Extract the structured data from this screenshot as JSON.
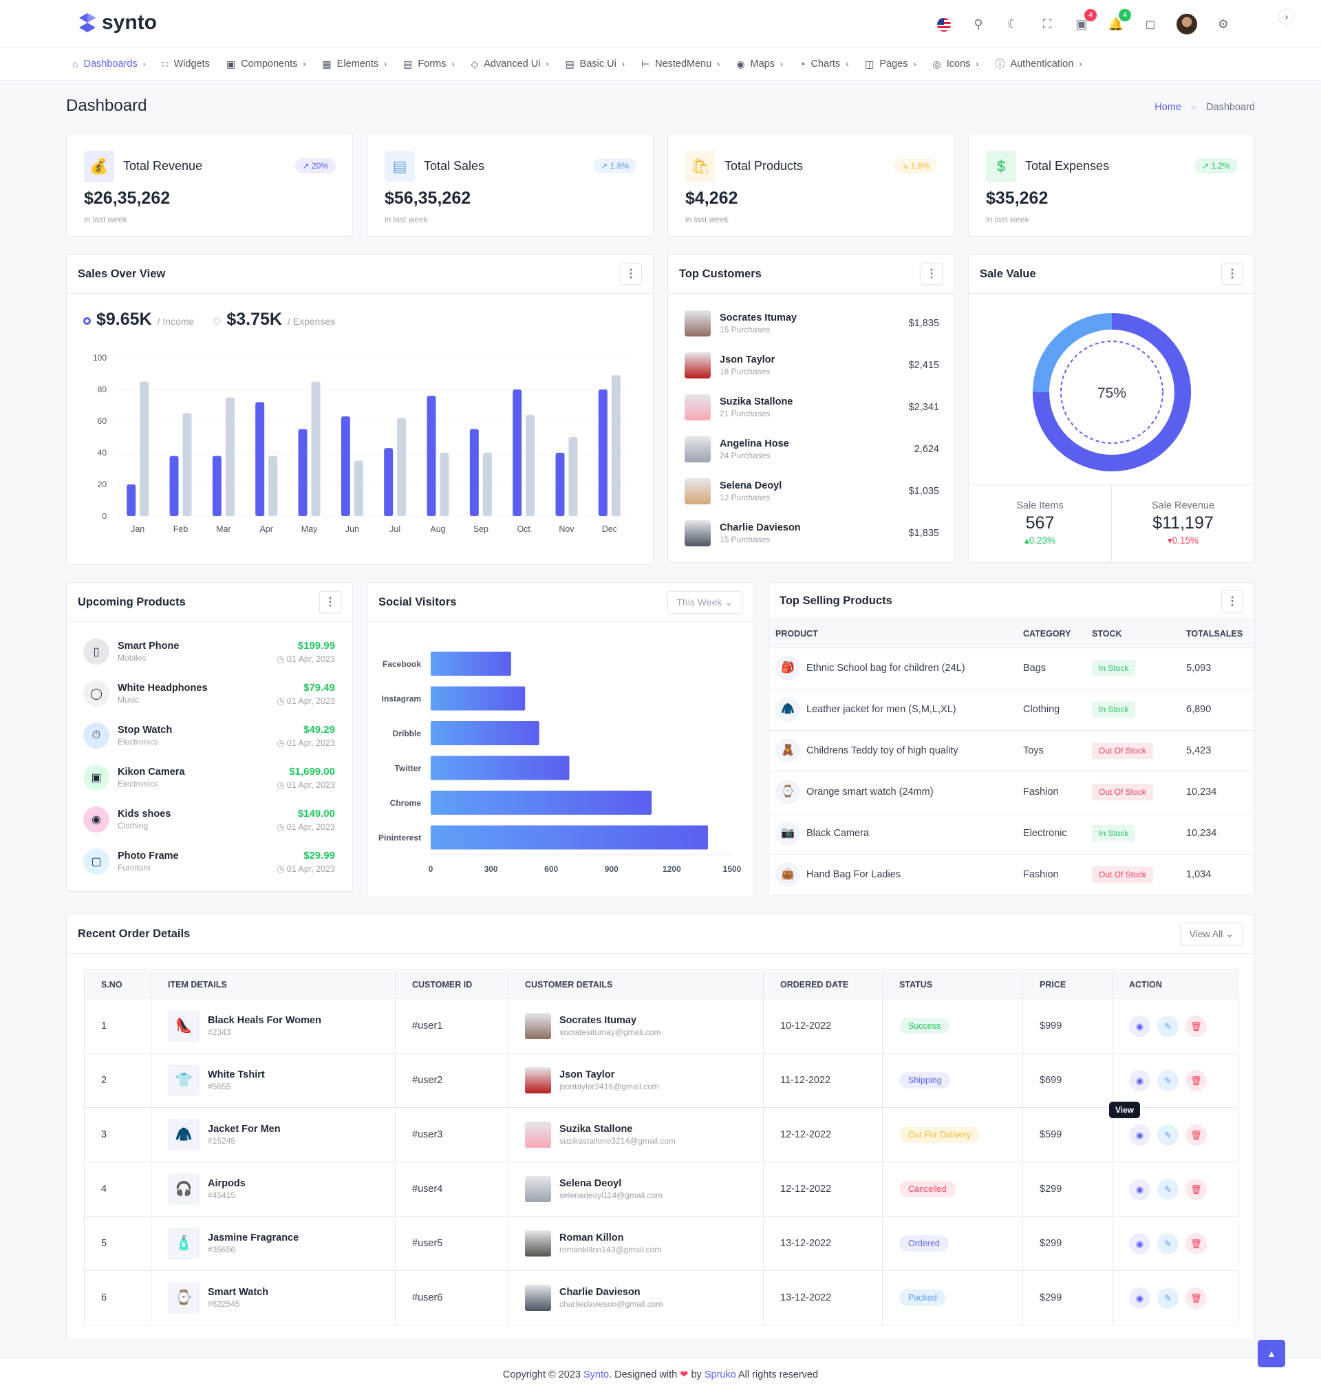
{
  "header": {
    "brand": "synto",
    "badges": {
      "cart": "4",
      "notifications": "4"
    }
  },
  "nav": [
    {
      "label": "Dashboards",
      "icon": "home-icon"
    },
    {
      "label": "Widgets",
      "icon": "grid-icon"
    },
    {
      "label": "Components",
      "icon": "box-icon"
    },
    {
      "label": "Elements",
      "icon": "cpu-icon"
    },
    {
      "label": "Forms",
      "icon": "file-icon"
    },
    {
      "label": "Advanced Ui",
      "icon": "layers-icon"
    },
    {
      "label": "Basic Ui",
      "icon": "doc-icon"
    },
    {
      "label": "NestedMenu",
      "icon": "tree-icon"
    },
    {
      "label": "Maps",
      "icon": "pin-icon"
    },
    {
      "label": "Charts",
      "icon": "pie-icon"
    },
    {
      "label": "Pages",
      "icon": "book-icon"
    },
    {
      "label": "Icons",
      "icon": "globe-icon"
    },
    {
      "label": "Authentication",
      "icon": "info-icon"
    }
  ],
  "page": {
    "title": "Dashboard",
    "breadcrumb": [
      "Home",
      "Dashboard"
    ]
  },
  "stats": [
    {
      "label": "Total Revenue",
      "value": "$26,35,262",
      "change": "20%",
      "sub": "in last week",
      "color": "#5b5ff0",
      "trend": "up"
    },
    {
      "label": "Total Sales",
      "value": "$56,35,262",
      "change": "1.8%",
      "sub": "in last week",
      "color": "#5fa0f7",
      "trend": "up"
    },
    {
      "label": "Total Products",
      "value": "$4,262",
      "change": "1.8%",
      "sub": "in last week",
      "color": "#f5b82e",
      "trend": "down"
    },
    {
      "label": "Total Expenses",
      "value": "$35,262",
      "change": "1.2%",
      "sub": "in last week",
      "color": "#22c55e",
      "trend": "up"
    }
  ],
  "sales": {
    "title": "Sales Over View",
    "income": "$9.65K",
    "income_label": "/ Income",
    "expenses": "$3.75K",
    "expenses_label": "/ Expenses"
  },
  "chart_data": [
    {
      "type": "bar",
      "categories": [
        "Jan",
        "Feb",
        "Mar",
        "Apr",
        "May",
        "Jun",
        "Jul",
        "Aug",
        "Sep",
        "Oct",
        "Nov",
        "Dec"
      ],
      "ylim": [
        0,
        100
      ],
      "yticks": [
        0,
        20,
        40,
        60,
        80,
        100
      ],
      "grid": true,
      "series": [
        {
          "name": "Income",
          "color": "#5b5ff0",
          "values": [
            20,
            38,
            38,
            72,
            55,
            63,
            43,
            76,
            55,
            80,
            40,
            80
          ]
        },
        {
          "name": "Expenses",
          "color": "#cbd5e1",
          "values": [
            85,
            65,
            75,
            38,
            85,
            35,
            62,
            40,
            40,
            64,
            50,
            89
          ]
        }
      ]
    },
    {
      "type": "bar",
      "orientation": "horizontal",
      "categories": [
        "Facebook",
        "Instagram",
        "Dribble",
        "Twitter",
        "Chrome",
        "Pininterest"
      ],
      "values": [
        400,
        470,
        540,
        690,
        1100,
        1380
      ],
      "xlim": [
        0,
        1500
      ],
      "xticks": [
        0,
        300,
        600,
        900,
        1200,
        1500
      ]
    },
    {
      "type": "pie",
      "variant": "donut",
      "label": "75%",
      "values": [
        75,
        25
      ],
      "colors": [
        "#5b5ff0",
        "#5fa0f7"
      ]
    }
  ],
  "customers": {
    "title": "Top Customers",
    "items": [
      {
        "name": "Socrates Itumay",
        "sub": "15 Purchases",
        "amount": "$1,835"
      },
      {
        "name": "Json Taylor",
        "sub": "18 Purchases",
        "amount": "$2,415"
      },
      {
        "name": "Suzika Stallone",
        "sub": "21 Purchases",
        "amount": "$2,341"
      },
      {
        "name": "Angelina Hose",
        "sub": "24 Purchases",
        "amount": "2,624"
      },
      {
        "name": "Selena Deoyl",
        "sub": "12 Purchases",
        "amount": "$1,035"
      },
      {
        "name": "Charlie Davieson",
        "sub": "15 Purchases",
        "amount": "$1,835"
      }
    ]
  },
  "sale_value": {
    "title": "Sale Value",
    "center": "75%",
    "items_label": "Sale Items",
    "items_value": "567",
    "items_change": "0.23%",
    "revenue_label": "Sale Revenue",
    "revenue_value": "$11,197",
    "revenue_change": "0.15%"
  },
  "upcoming": {
    "title": "Upcoming Products",
    "items": [
      {
        "name": "Smart Phone",
        "cat": "Mobiles",
        "price": "$199.99",
        "date": "01 Apr, 2023"
      },
      {
        "name": "White Headphones",
        "cat": "Music",
        "price": "$79.49",
        "date": "01 Apr, 2023"
      },
      {
        "name": "Stop Watch",
        "cat": "Electronics",
        "price": "$49.29",
        "date": "01 Apr, 2023"
      },
      {
        "name": "Kikon Camera",
        "cat": "Electronics",
        "price": "$1,699.00",
        "date": "01 Apr, 2023"
      },
      {
        "name": "Kids shoes",
        "cat": "Clothing",
        "price": "$149.00",
        "date": "01 Apr, 2023"
      },
      {
        "name": "Photo Frame",
        "cat": "Furniture",
        "price": "$29.99",
        "date": "01 Apr, 2023"
      }
    ]
  },
  "social": {
    "title": "Social Visitors",
    "filter": "This Week"
  },
  "top_selling": {
    "title": "Top Selling Products",
    "headers": [
      "PRODUCT",
      "CATEGORY",
      "STOCK",
      "TOTALSALES"
    ],
    "rows": [
      {
        "product": "Ethnic School bag for children (24L)",
        "category": "Bags",
        "stock": "In Stock",
        "sales": "5,093"
      },
      {
        "product": "Leather jacket for men (S,M,L,XL)",
        "category": "Clothing",
        "stock": "In Stock",
        "sales": "6,890"
      },
      {
        "product": "Childrens Teddy toy of high quality",
        "category": "Toys",
        "stock": "Out Of Stock",
        "sales": "5,423"
      },
      {
        "product": "Orange smart watch (24mm)",
        "category": "Fashion",
        "stock": "Out Of Stock",
        "sales": "10,234"
      },
      {
        "product": "Black Camera",
        "category": "Electronic",
        "stock": "In Stock",
        "sales": "10,234"
      },
      {
        "product": "Hand Bag For Ladies",
        "category": "Fashion",
        "stock": "Out Of Stock",
        "sales": "1,034"
      }
    ]
  },
  "orders": {
    "title": "Recent Order Details",
    "view_all": "View All",
    "tooltip": "View",
    "headers": [
      "S.NO",
      "ITEM DETAILS",
      "CUSTOMER ID",
      "CUSTOMER DETAILS",
      "ORDERED DATE",
      "STATUS",
      "PRICE",
      "ACTION"
    ],
    "rows": [
      {
        "sno": "1",
        "item": "Black Heals For Women",
        "code": "#2343",
        "cid": "#user1",
        "cname": "Socrates Itumay",
        "email": "socratesitumay@gmail.com",
        "date": "10-12-2022",
        "status": "Success",
        "price": "$999"
      },
      {
        "sno": "2",
        "item": "White Tshirt",
        "code": "#5655",
        "cid": "#user2",
        "cname": "Json Taylor",
        "email": "jsontaylor2416@gmail.com",
        "date": "11-12-2022",
        "status": "Shipping",
        "price": "$699"
      },
      {
        "sno": "3",
        "item": "Jacket For Men",
        "code": "#15245",
        "cid": "#user3",
        "cname": "Suzika Stallone",
        "email": "suzikastallone3214@gmail.com",
        "date": "12-12-2022",
        "status": "Out For Delivery",
        "price": "$599"
      },
      {
        "sno": "4",
        "item": "Airpods",
        "code": "#45415",
        "cid": "#user4",
        "cname": "Selena Deoyl",
        "email": "selenadeoyl114@gmail.com",
        "date": "12-12-2022",
        "status": "Cancelled",
        "price": "$299"
      },
      {
        "sno": "5",
        "item": "Jasmine Fragrance",
        "code": "#35656",
        "cid": "#user5",
        "cname": "Roman Killon",
        "email": "romankillon143@gmail.com",
        "date": "13-12-2022",
        "status": "Ordered",
        "price": "$299"
      },
      {
        "sno": "6",
        "item": "Smart Watch",
        "code": "#622545",
        "cid": "#user6",
        "cname": "Charlie Davieson",
        "email": "charliedavieson@gmail.com",
        "date": "13-12-2022",
        "status": "Packed",
        "price": "$299"
      }
    ]
  },
  "footer": {
    "pre": "Copyright © 2023",
    "brand": "Synto",
    "mid": ". Designed with",
    "by": "by",
    "author": "Spruko",
    "post": "All rights reserved"
  }
}
